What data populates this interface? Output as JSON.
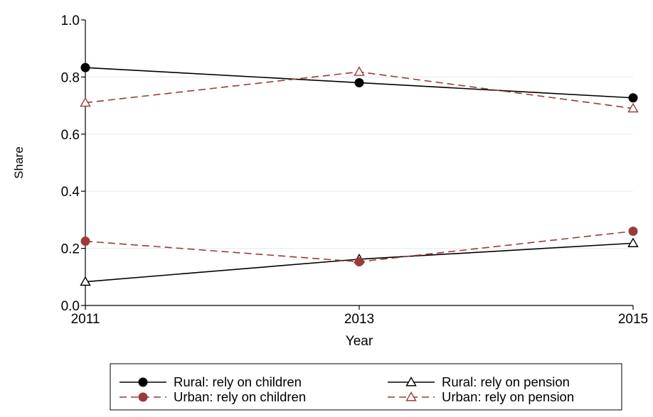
{
  "chart_data": {
    "type": "line",
    "xlabel": "Year",
    "ylabel": "Share",
    "x": [
      2011,
      2013,
      2015
    ],
    "x_ticks": [
      "2011",
      "2013",
      "2015"
    ],
    "ylim": [
      0,
      1
    ],
    "y_ticks": [
      "0.0",
      "0.2",
      "0.4",
      "0.6",
      "0.8",
      "1.0"
    ],
    "grid": true,
    "legend_position": "bottom",
    "series": [
      {
        "name": "Rural: rely on children",
        "values": [
          0.833,
          0.78,
          0.727
        ],
        "color": "#000000",
        "dash": "solid",
        "marker": "filled-circle"
      },
      {
        "name": "Rural: rely on pension",
        "values": [
          0.083,
          0.162,
          0.218
        ],
        "color": "#000000",
        "dash": "solid",
        "marker": "hollow-triangle"
      },
      {
        "name": "Urban: rely on children",
        "values": [
          0.225,
          0.153,
          0.26
        ],
        "color": "#9b3a3a",
        "dash": "dashed",
        "marker": "filled-circle"
      },
      {
        "name": "Urban: rely on pension",
        "values": [
          0.71,
          0.818,
          0.69
        ],
        "color": "#9b3a3a",
        "dash": "dashed",
        "marker": "hollow-triangle"
      }
    ]
  }
}
